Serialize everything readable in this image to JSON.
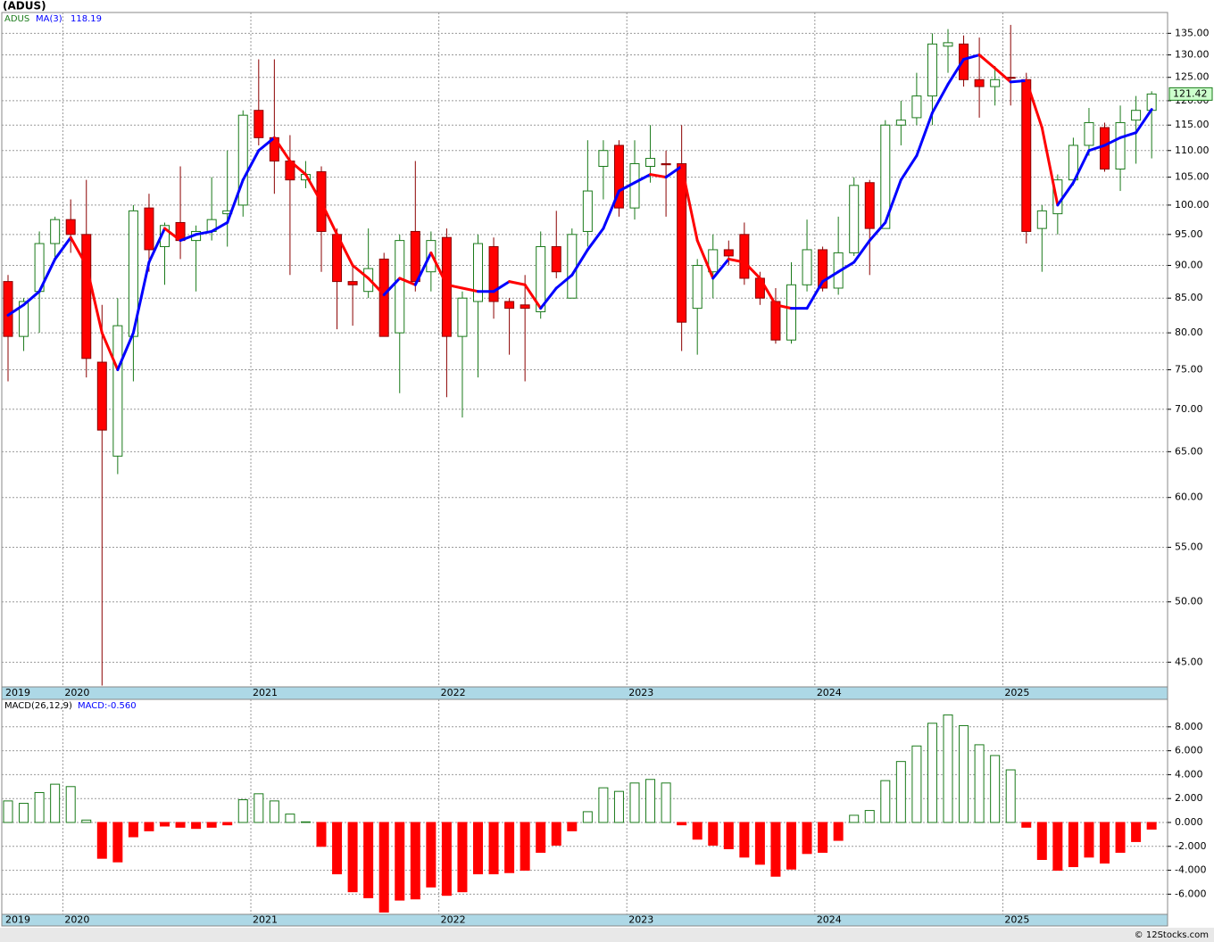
{
  "chart_data": [
    {
      "type": "candlestick",
      "title": "(ADUS)",
      "symbol": "ADUS",
      "categories": [
        "2019",
        null,
        null,
        null,
        "2020",
        null,
        null,
        null,
        null,
        null,
        null,
        null,
        null,
        null,
        null,
        null,
        "2021",
        null,
        null,
        null,
        null,
        null,
        null,
        null,
        null,
        null,
        null,
        null,
        "2022",
        null,
        null,
        null,
        null,
        null,
        null,
        null,
        null,
        null,
        null,
        null,
        "2023",
        null,
        null,
        null,
        null,
        null,
        null,
        null,
        null,
        null,
        null,
        null,
        "2024",
        null,
        null,
        null,
        null,
        null,
        null,
        null,
        null,
        null,
        null,
        null,
        "2025",
        null,
        null,
        null,
        null,
        null,
        null,
        null,
        null,
        null
      ],
      "open": [
        87.5,
        79.5,
        86,
        93.5,
        97.5,
        95,
        76,
        64.5,
        79.5,
        99.5,
        93,
        97,
        94,
        95.5,
        98.5,
        100,
        118,
        112.5,
        108,
        104.5,
        106,
        95,
        87.5,
        86,
        91,
        80,
        95.5,
        89,
        94.5,
        79.5,
        84.5,
        93,
        84.5,
        84,
        83,
        93,
        85,
        95.5,
        107,
        111,
        99.5,
        107,
        107.5,
        107.5,
        83.5,
        89,
        92.5,
        95,
        88,
        84.5,
        79,
        87,
        92.5,
        86.5,
        92,
        104,
        96,
        115,
        116.5,
        121,
        132,
        132.5,
        124.5,
        123,
        125,
        124.5,
        96,
        98.5,
        104.5,
        111,
        114.5,
        106.5,
        116,
        118
      ],
      "high": [
        88.5,
        85,
        95.5,
        98,
        101,
        104.5,
        84,
        85,
        100,
        102,
        97,
        107,
        96.5,
        105,
        110,
        118,
        129,
        129,
        113,
        108,
        107,
        96,
        90,
        96,
        92,
        95,
        108,
        95.5,
        96,
        86,
        95,
        94.5,
        85,
        88.5,
        95.5,
        99,
        96,
        112,
        112,
        112,
        112,
        115,
        110,
        115,
        91,
        95,
        94,
        97,
        89,
        86.5,
        90.5,
        97.5,
        93,
        98,
        105,
        104.5,
        116,
        120,
        126,
        135,
        136,
        134.5,
        134,
        127.5,
        137,
        126,
        100,
        105.5,
        112.5,
        118.5,
        115.5,
        119,
        121,
        122
      ],
      "low": [
        73.5,
        77.5,
        80,
        91,
        92,
        74,
        43.2,
        62.5,
        73.5,
        89,
        87,
        91,
        86,
        94,
        93,
        98,
        111,
        102,
        88.5,
        103,
        89,
        80.5,
        81,
        85,
        79.5,
        72,
        86,
        86,
        71.5,
        69,
        74,
        82,
        77,
        73.5,
        82,
        88,
        85,
        93,
        101,
        98,
        97.5,
        104,
        98,
        77.5,
        77,
        85,
        90,
        87,
        84,
        78.5,
        78.5,
        86,
        86,
        85.5,
        91.5,
        88.5,
        96,
        111,
        115,
        115,
        126,
        123,
        116.5,
        119,
        119,
        93.5,
        89,
        95,
        103.5,
        109,
        106,
        102.5,
        107.5,
        108.5
      ],
      "close": [
        79.5,
        84.5,
        93.5,
        97.5,
        95,
        76.5,
        67.5,
        81,
        99,
        92.5,
        96.5,
        94,
        95.5,
        97.5,
        99,
        117,
        112.5,
        108,
        104.5,
        105.5,
        95.5,
        87.5,
        87,
        89.5,
        79.5,
        94,
        87.5,
        94,
        79.5,
        85,
        93.5,
        84.5,
        83.5,
        83.5,
        93,
        89,
        95,
        102.5,
        110,
        99.5,
        107.5,
        108.5,
        107.3,
        81.5,
        90,
        92.5,
        91.5,
        88,
        85,
        79,
        87,
        92.5,
        86.5,
        92,
        103.5,
        96,
        115,
        116,
        121,
        132.5,
        132.8,
        124.5,
        123,
        124.5,
        124.8,
        95.5,
        99,
        104.5,
        111,
        115.5,
        106.5,
        115.5,
        118,
        121.42
      ],
      "up_color": "#1a7a1a",
      "down_color": "#ff0000",
      "ma": {
        "name": "MA(3)",
        "values": [
          82.5,
          84,
          86,
          91,
          94.5,
          90,
          80,
          75,
          80,
          90.5,
          96,
          94,
          95,
          95.5,
          97,
          104.5,
          110,
          112.5,
          108,
          105.5,
          100.5,
          95,
          90,
          88,
          85.5,
          88,
          87,
          92,
          87,
          86.5,
          86,
          86,
          87.5,
          87,
          83.5,
          86.5,
          88.5,
          92.5,
          96,
          102.5,
          104,
          105.5,
          105,
          107,
          94,
          88,
          91,
          90.5,
          88,
          84,
          83.5,
          83.5,
          87.5,
          89,
          90.5,
          94,
          97,
          104.5,
          109,
          117.5,
          123.5,
          129,
          130,
          127,
          124,
          124.3,
          114.5,
          100,
          104,
          110,
          111,
          112.5,
          113.5,
          118.19
        ],
        "up_color": "#0000ff",
        "down_color": "#ff0000"
      },
      "ylim": [
        43.1,
        140
      ],
      "log_scale": true,
      "grid": true,
      "yticks": [
        {
          "value": 45,
          "label": "45.00"
        },
        {
          "value": 50,
          "label": "50.00"
        },
        {
          "value": 55,
          "label": "55.00"
        },
        {
          "value": 60,
          "label": "60.00"
        },
        {
          "value": 65,
          "label": "65.00"
        },
        {
          "value": 70,
          "label": "70.00"
        },
        {
          "value": 75,
          "label": "75.00"
        },
        {
          "value": 80,
          "label": "80.00"
        },
        {
          "value": 85,
          "label": "85.00"
        },
        {
          "value": 90,
          "label": "90.00"
        },
        {
          "value": 95,
          "label": "95.00"
        },
        {
          "value": 100,
          "label": "100.00"
        },
        {
          "value": 105,
          "label": "105.00"
        },
        {
          "value": 110,
          "label": "110.00"
        },
        {
          "value": 115,
          "label": "115.00"
        },
        {
          "value": 120,
          "label": "120.00"
        },
        {
          "value": 125,
          "label": "125.00"
        },
        {
          "value": 130,
          "label": "130.00"
        },
        {
          "value": 135,
          "label": "135.00"
        }
      ]
    },
    {
      "type": "bar",
      "title": "MACD(26,12,9)",
      "label": "MACD:-0.560",
      "categories": [
        "2019",
        null,
        null,
        null,
        "2020",
        null,
        null,
        null,
        null,
        null,
        null,
        null,
        null,
        null,
        null,
        null,
        "2021",
        null,
        null,
        null,
        null,
        null,
        null,
        null,
        null,
        null,
        null,
        null,
        "2022",
        null,
        null,
        null,
        null,
        null,
        null,
        null,
        null,
        null,
        null,
        null,
        "2023",
        null,
        null,
        null,
        null,
        null,
        null,
        null,
        null,
        null,
        null,
        null,
        "2024",
        null,
        null,
        null,
        null,
        null,
        null,
        null,
        null,
        null,
        null,
        null,
        "2025",
        null,
        null,
        null,
        null,
        null,
        null,
        null,
        null,
        null
      ],
      "values": [
        1.8,
        1.6,
        2.5,
        3.2,
        3.0,
        0.2,
        -3.0,
        -3.3,
        -1.2,
        -0.7,
        -0.3,
        -0.4,
        -0.5,
        -0.4,
        -0.2,
        1.9,
        2.4,
        1.8,
        0.7,
        0.05,
        -2.0,
        -4.3,
        -5.8,
        -6.3,
        -7.5,
        -6.5,
        -6.4,
        -5.4,
        -6.1,
        -5.8,
        -4.3,
        -4.3,
        -4.2,
        -4.0,
        -2.5,
        -1.9,
        -0.7,
        0.9,
        2.9,
        2.6,
        3.3,
        3.6,
        3.3,
        -0.2,
        -1.4,
        -1.9,
        -2.2,
        -2.9,
        -3.5,
        -4.5,
        -3.9,
        -2.6,
        -2.5,
        -1.5,
        0.6,
        1.0,
        3.5,
        5.1,
        6.4,
        8.3,
        9.0,
        8.1,
        6.5,
        5.6,
        4.4,
        -0.4,
        -3.1,
        -4.0,
        -3.7,
        -2.9,
        -3.4,
        -2.5,
        -1.6,
        -0.56
      ],
      "pos_color": "#1a7a1a",
      "neg_color": "#ff0000",
      "ylim": [
        -7.69,
        10.3
      ],
      "grid": true,
      "yticks": [
        {
          "value": 8,
          "label": "8.000"
        },
        {
          "value": 6,
          "label": "6.000"
        },
        {
          "value": 4,
          "label": "4.000"
        },
        {
          "value": 2,
          "label": "2.000"
        },
        {
          "value": 0,
          "label": "0.000"
        },
        {
          "value": -2,
          "label": "-2.000"
        },
        {
          "value": -4,
          "label": "-4.000"
        },
        {
          "value": -6,
          "label": "-6.000"
        }
      ]
    }
  ],
  "footer": "© 12Stocks.com"
}
